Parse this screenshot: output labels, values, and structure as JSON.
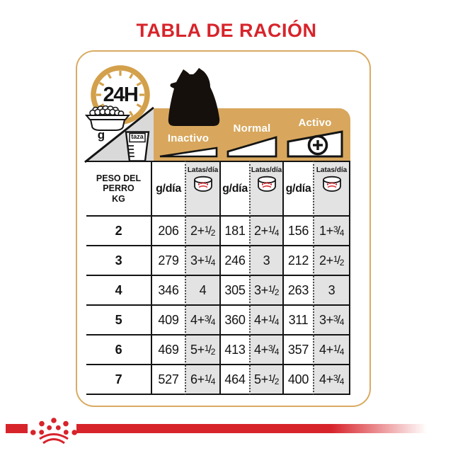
{
  "title": "TABLA DE RACIÓN",
  "header": {
    "clock_label": "24H",
    "grams_unit": "g",
    "cup_label": "taza",
    "activities": [
      {
        "label": "Inactivo"
      },
      {
        "label": "Normal"
      },
      {
        "label": "Activo"
      }
    ]
  },
  "table": {
    "weight_header_lines": [
      "PESO DEL",
      "PERRO",
      "KG"
    ],
    "grams_col_label": "g/día",
    "cans_col_label": "Latas/día",
    "rows": [
      {
        "weight": "2",
        "cells": [
          "206",
          "2+1/2",
          "181",
          "2+1/4",
          "156",
          "1+3/4"
        ]
      },
      {
        "weight": "3",
        "cells": [
          "279",
          "3+1/4",
          "246",
          "3",
          "212",
          "2+1/2"
        ]
      },
      {
        "weight": "4",
        "cells": [
          "346",
          "4",
          "305",
          "3+1/2",
          "263",
          "3"
        ]
      },
      {
        "weight": "5",
        "cells": [
          "409",
          "4+3/4",
          "360",
          "4+1/4",
          "311",
          "3+3/4"
        ]
      },
      {
        "weight": "6",
        "cells": [
          "469",
          "5+1/2",
          "413",
          "4+3/4",
          "357",
          "4+1/4"
        ]
      },
      {
        "weight": "7",
        "cells": [
          "527",
          "6+1/4",
          "464",
          "5+1/2",
          "400",
          "4+3/4"
        ]
      }
    ]
  },
  "colors": {
    "brand_red": "#d7242b",
    "banner_gold": "#d8a75d",
    "panel_border_gold": "#d9ab62",
    "cell_gray": "#e3e3e3",
    "ink": "#141414"
  },
  "chart_data": {
    "type": "table",
    "title": "TABLA DE RACIÓN",
    "row_header": "PESO DEL PERRO KG",
    "column_groups": [
      {
        "activity": "Inactivo",
        "columns": [
          "g/día",
          "Latas/día"
        ]
      },
      {
        "activity": "Normal",
        "columns": [
          "g/día",
          "Latas/día"
        ]
      },
      {
        "activity": "Activo",
        "columns": [
          "g/día",
          "Latas/día"
        ]
      }
    ],
    "rows": [
      {
        "peso_kg": 2,
        "inactivo_g_dia": 206,
        "inactivo_latas_dia": "2+1/2",
        "normal_g_dia": 181,
        "normal_latas_dia": "2+1/4",
        "activo_g_dia": 156,
        "activo_latas_dia": "1+3/4"
      },
      {
        "peso_kg": 3,
        "inactivo_g_dia": 279,
        "inactivo_latas_dia": "3+1/4",
        "normal_g_dia": 246,
        "normal_latas_dia": "3",
        "activo_g_dia": 212,
        "activo_latas_dia": "2+1/2"
      },
      {
        "peso_kg": 4,
        "inactivo_g_dia": 346,
        "inactivo_latas_dia": "4",
        "normal_g_dia": 305,
        "normal_latas_dia": "3+1/2",
        "activo_g_dia": 263,
        "activo_latas_dia": "3"
      },
      {
        "peso_kg": 5,
        "inactivo_g_dia": 409,
        "inactivo_latas_dia": "4+3/4",
        "normal_g_dia": 360,
        "normal_latas_dia": "4+1/4",
        "activo_g_dia": 311,
        "activo_latas_dia": "3+3/4"
      },
      {
        "peso_kg": 6,
        "inactivo_g_dia": 469,
        "inactivo_latas_dia": "5+1/2",
        "normal_g_dia": 413,
        "normal_latas_dia": "4+3/4",
        "activo_g_dia": 357,
        "activo_latas_dia": "4+1/4"
      },
      {
        "peso_kg": 7,
        "inactivo_g_dia": 527,
        "inactivo_latas_dia": "6+1/4",
        "normal_g_dia": 464,
        "normal_latas_dia": "5+1/2",
        "activo_g_dia": 400,
        "activo_latas_dia": "4+3/4"
      }
    ]
  }
}
